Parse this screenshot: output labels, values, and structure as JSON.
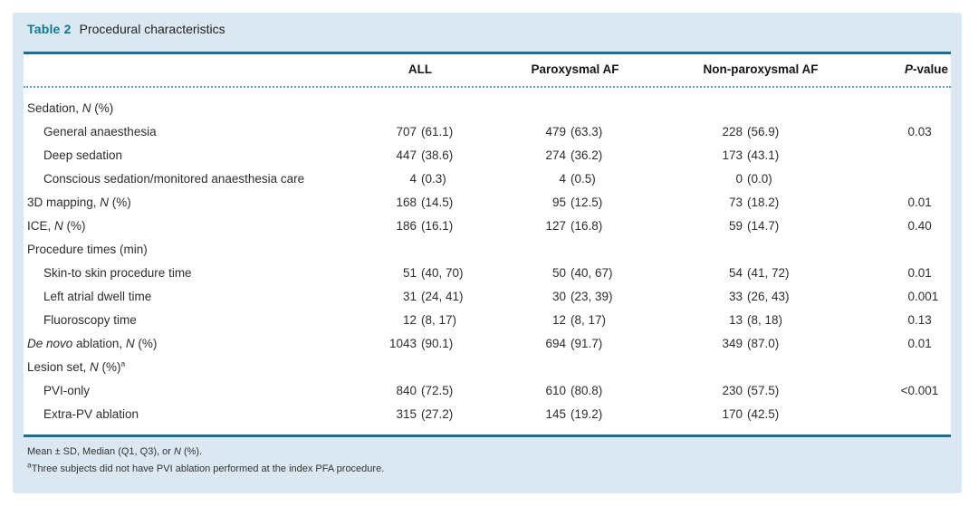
{
  "colors": {
    "accent_teal": "#15708f",
    "title_teal": "#0f7899",
    "panel_background": "#dbe7f1",
    "dotted_rule": "#56a2c6",
    "body_text": "#2d2d2d"
  },
  "table": {
    "title_label": "Table 2",
    "title_caption": "Procedural characteristics",
    "columns": {
      "all": "ALL",
      "paroxysmal": "Paroxysmal AF",
      "non_paroxysmal": "Non-paroxysmal AF",
      "p_value_italic": "P",
      "p_value_rest": "-value"
    },
    "rows": [
      {
        "label": [
          {
            "t": "Sedation, "
          },
          {
            "t": "N",
            "i": true
          },
          {
            "t": " (%)"
          }
        ],
        "indent": false,
        "all": "",
        "paroxysmal": "",
        "non_paroxysmal": "",
        "p": ""
      },
      {
        "label": [
          {
            "t": "General anaesthesia"
          }
        ],
        "indent": true,
        "all": "707 (61.1)",
        "paroxysmal": "479 (63.3)",
        "non_paroxysmal": "228 (56.9)",
        "p": "0.03"
      },
      {
        "label": [
          {
            "t": "Deep sedation"
          }
        ],
        "indent": true,
        "all": "447 (38.6)",
        "paroxysmal": "274 (36.2)",
        "non_paroxysmal": "173 (43.1)",
        "p": ""
      },
      {
        "label": [
          {
            "t": "Conscious sedation/monitored anaesthesia care"
          }
        ],
        "indent": true,
        "all": "4 (0.3)",
        "paroxysmal": "4 (0.5)",
        "non_paroxysmal": "0 (0.0)",
        "p": ""
      },
      {
        "label": [
          {
            "t": "3D mapping, "
          },
          {
            "t": "N",
            "i": true
          },
          {
            "t": " (%)"
          }
        ],
        "indent": false,
        "all": "168 (14.5)",
        "paroxysmal": "95 (12.5)",
        "non_paroxysmal": "73 (18.2)",
        "p": "0.01"
      },
      {
        "label": [
          {
            "t": "ICE, "
          },
          {
            "t": "N",
            "i": true
          },
          {
            "t": " (%)"
          }
        ],
        "indent": false,
        "all": "186 (16.1)",
        "paroxysmal": "127 (16.8)",
        "non_paroxysmal": "59 (14.7)",
        "p": "0.40"
      },
      {
        "label": [
          {
            "t": "Procedure times (min)"
          }
        ],
        "indent": false,
        "all": "",
        "paroxysmal": "",
        "non_paroxysmal": "",
        "p": ""
      },
      {
        "label": [
          {
            "t": "Skin-to skin procedure time"
          }
        ],
        "indent": true,
        "all": "51 (40, 70)",
        "paroxysmal": "50 (40, 67)",
        "non_paroxysmal": "54 (41, 72)",
        "p": "0.01"
      },
      {
        "label": [
          {
            "t": "Left atrial dwell time"
          }
        ],
        "indent": true,
        "all": "31 (24, 41)",
        "paroxysmal": "30 (23, 39)",
        "non_paroxysmal": "33 (26, 43)",
        "p": "0.001"
      },
      {
        "label": [
          {
            "t": "Fluoroscopy time"
          }
        ],
        "indent": true,
        "all": "12 (8, 17)",
        "paroxysmal": "12 (8, 17)",
        "non_paroxysmal": "13 (8, 18)",
        "p": "0.13"
      },
      {
        "label": [
          {
            "t": "De novo",
            "i": true
          },
          {
            "t": " ablation, "
          },
          {
            "t": "N",
            "i": true
          },
          {
            "t": " (%)"
          }
        ],
        "indent": false,
        "all": "1043 (90.1)",
        "paroxysmal": "694 (91.7)",
        "non_paroxysmal": "349 (87.0)",
        "p": "0.01"
      },
      {
        "label": [
          {
            "t": "Lesion set, "
          },
          {
            "t": "N",
            "i": true
          },
          {
            "t": " (%)"
          },
          {
            "t": "a",
            "s": true
          }
        ],
        "indent": false,
        "all": "",
        "paroxysmal": "",
        "non_paroxysmal": "",
        "p": ""
      },
      {
        "label": [
          {
            "t": "PVI-only"
          }
        ],
        "indent": true,
        "all": "840 (72.5)",
        "paroxysmal": "610 (80.8)",
        "non_paroxysmal": "230 (57.5)",
        "p": "<0.001"
      },
      {
        "label": [
          {
            "t": "Extra-PV ablation"
          }
        ],
        "indent": true,
        "all": "315 (27.2)",
        "paroxysmal": "145 (19.2)",
        "non_paroxysmal": "170 (42.5)",
        "p": ""
      }
    ],
    "footnotes": [
      [
        {
          "t": "Mean ± SD, Median (Q1, Q3), or "
        },
        {
          "t": "N",
          "i": true
        },
        {
          "t": " (%)."
        }
      ],
      [
        {
          "t": "a",
          "s": true
        },
        {
          "t": "Three subjects did not have PVI ablation performed at the index PFA procedure."
        }
      ]
    ]
  }
}
